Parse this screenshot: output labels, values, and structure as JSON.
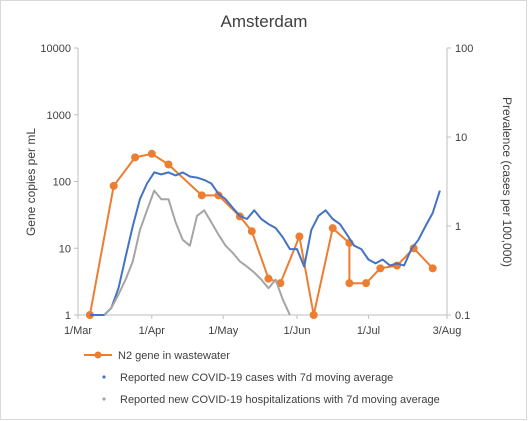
{
  "chart_data": {
    "type": "line",
    "title": "Amsterdam",
    "ylabel": "Gene copies per mL",
    "y2label": "Prevalence (cases per 100,000)",
    "xlabel": "",
    "x_ticks": [
      "1/Mar",
      "1/Apr",
      "1/May",
      "1/Jun",
      "1/Jul",
      "3/Aug"
    ],
    "y_ticks": [
      "1",
      "10",
      "100",
      "1000",
      "10000"
    ],
    "y2_ticks": [
      "0.1",
      "1",
      "10",
      "100"
    ],
    "ylim": [
      1,
      10000
    ],
    "y2lim": [
      0.1,
      100
    ],
    "yscale": "log",
    "y2scale": "log",
    "xlim": [
      "2020-03-01",
      "2020-08-03"
    ],
    "grid": false,
    "legend_position": "bottom",
    "legend": [
      "N2 gene in wastewater",
      "Reported new COVID-19 cases with 7d moving average",
      "Reported new COVID-19 hospitalizations with 7d moving average"
    ],
    "colors": {
      "wastewater": "#ed7d31",
      "cases": "#4472c4",
      "hospitalizations": "#a5a5a5",
      "axis": "#bfbfbf",
      "text": "#404040"
    },
    "series": [
      {
        "name": "N2 gene in wastewater",
        "axis": "left",
        "style": "line-markers",
        "x": [
          "2020-03-06",
          "2020-03-16",
          "2020-03-25",
          "2020-04-01",
          "2020-04-08",
          "2020-04-22",
          "2020-04-29",
          "2020-05-08",
          "2020-05-13",
          "2020-05-20",
          "2020-05-25",
          "2020-06-02",
          "2020-06-08",
          "2020-06-16",
          "2020-06-23",
          "2020-06-23",
          "2020-06-30",
          "2020-07-06",
          "2020-07-13",
          "2020-07-20",
          "2020-07-28"
        ],
        "values": [
          1,
          86,
          230,
          260,
          180,
          62,
          62,
          30,
          18,
          3.5,
          3.0,
          15,
          1.0,
          20,
          12,
          3.0,
          3.0,
          5.0,
          5.5,
          10,
          5.0
        ]
      },
      {
        "name": "Reported new COVID-19 cases with 7d moving average",
        "axis": "right",
        "style": "line",
        "x": [
          "2020-03-06",
          "2020-03-09",
          "2020-03-12",
          "2020-03-15",
          "2020-03-18",
          "2020-03-21",
          "2020-03-24",
          "2020-03-27",
          "2020-03-30",
          "2020-04-02",
          "2020-04-05",
          "2020-04-08",
          "2020-04-11",
          "2020-04-14",
          "2020-04-17",
          "2020-04-20",
          "2020-04-23",
          "2020-04-26",
          "2020-04-29",
          "2020-05-02",
          "2020-05-05",
          "2020-05-08",
          "2020-05-11",
          "2020-05-14",
          "2020-05-17",
          "2020-05-20",
          "2020-05-23",
          "2020-05-26",
          "2020-05-29",
          "2020-06-01",
          "2020-06-04",
          "2020-06-07",
          "2020-06-10",
          "2020-06-13",
          "2020-06-16",
          "2020-06-19",
          "2020-06-22",
          "2020-06-25",
          "2020-06-28",
          "2020-07-01",
          "2020-07-04",
          "2020-07-07",
          "2020-07-10",
          "2020-07-13",
          "2020-07-16",
          "2020-07-19",
          "2020-07-22",
          "2020-07-25",
          "2020-07-28",
          "2020-07-31"
        ],
        "values": [
          0.1,
          0.1,
          0.1,
          0.12,
          0.2,
          0.45,
          1.0,
          2.0,
          3.0,
          4.0,
          3.8,
          4.0,
          3.7,
          4.0,
          3.6,
          3.5,
          3.3,
          3.0,
          2.3,
          2.0,
          1.6,
          1.3,
          1.2,
          1.5,
          1.2,
          1.05,
          0.95,
          0.75,
          0.55,
          0.55,
          0.35,
          0.9,
          1.3,
          1.5,
          1.2,
          1.05,
          0.8,
          0.6,
          0.55,
          0.42,
          0.38,
          0.42,
          0.36,
          0.38,
          0.36,
          0.55,
          0.7,
          1.0,
          1.4,
          2.5
        ]
      },
      {
        "name": "Reported new COVID-19 hospitalizations with 7d moving average",
        "axis": "right",
        "style": "line",
        "x": [
          "2020-03-12",
          "2020-03-15",
          "2020-03-18",
          "2020-03-21",
          "2020-03-24",
          "2020-03-27",
          "2020-03-30",
          "2020-04-02",
          "2020-04-05",
          "2020-04-08",
          "2020-04-11",
          "2020-04-14",
          "2020-04-17",
          "2020-04-20",
          "2020-04-23",
          "2020-04-26",
          "2020-04-29",
          "2020-05-02",
          "2020-05-05",
          "2020-05-08",
          "2020-05-11",
          "2020-05-14",
          "2020-05-17",
          "2020-05-20",
          "2020-05-23",
          "2020-05-26",
          "2020-05-29"
        ],
        "values": [
          0.1,
          0.12,
          0.17,
          0.25,
          0.4,
          0.9,
          1.5,
          2.5,
          2.0,
          2.0,
          1.1,
          0.7,
          0.6,
          1.3,
          1.5,
          1.1,
          0.8,
          0.6,
          0.5,
          0.4,
          0.35,
          0.3,
          0.25,
          0.2,
          0.25,
          0.15,
          0.1
        ]
      }
    ]
  }
}
